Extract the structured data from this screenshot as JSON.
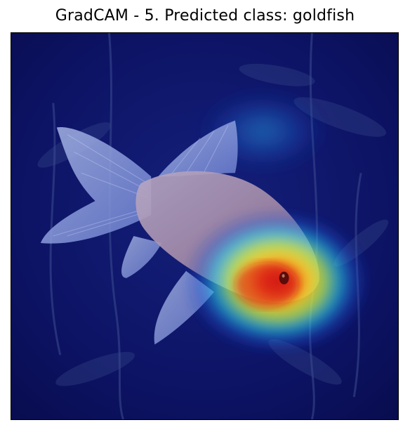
{
  "figure": {
    "title": "GradCAM - 5. Predicted class: goldfish"
  },
  "image": {
    "subject": "goldfish",
    "overlay": "GradCAM heatmap",
    "colormap": "jet"
  },
  "colors": {
    "background_dark": "#0b0f5c",
    "heat_low": "#1a2aa8",
    "heat_mid": "#26d0e8",
    "heat_midhigh": "#c8f050",
    "heat_high": "#ffd21f",
    "heat_peak": "#e8281a"
  }
}
